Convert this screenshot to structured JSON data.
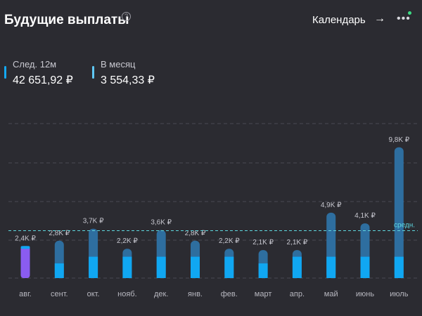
{
  "header": {
    "title": "Будущие выплаты",
    "help_icon": "?",
    "calendar_label": "Календарь",
    "arrow_icon": "→",
    "more_icon": "•••"
  },
  "stats": {
    "next12": {
      "label": "След. 12м",
      "value": "42 651,92 ₽",
      "color": "#14a8f0"
    },
    "monthly": {
      "label": "В месяц",
      "value": "3 554,33 ₽",
      "color": "#5fc8f5"
    }
  },
  "colors": {
    "background": "#2b2b31",
    "bar_top": "#2e6e9f",
    "bar_bottom": "#10a7f2",
    "current_month": "#8a5cf0",
    "average_line": "#5fd8e0",
    "grid": "#484852"
  },
  "chart_data": {
    "type": "bar",
    "categories": [
      "авг.",
      "сент.",
      "окт.",
      "нояб.",
      "дек.",
      "янв.",
      "фев.",
      "март",
      "апр.",
      "май",
      "июнь",
      "июль"
    ],
    "values": [
      2.4,
      2.8,
      3.7,
      2.2,
      3.6,
      2.8,
      2.2,
      2.1,
      2.1,
      4.9,
      4.1,
      9.8
    ],
    "data_labels": [
      "2,4K ₽",
      "2,8K ₽",
      "3,7K ₽",
      "2,2K ₽",
      "3,6K ₽",
      "2,8K ₽",
      "2,2K ₽",
      "2,1K ₽",
      "2,1K ₽",
      "4,9K ₽",
      "4,1K ₽",
      "9,8K ₽"
    ],
    "average": 3.55,
    "average_label": "средн.",
    "highlighted_index": 0,
    "grid": true,
    "legend": "none"
  }
}
